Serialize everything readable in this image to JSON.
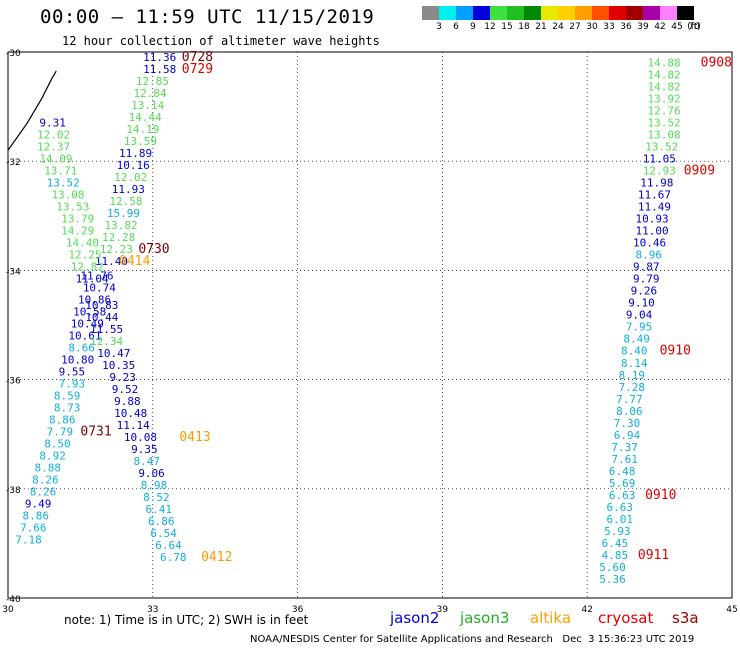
{
  "header": {
    "title": "00:00 – 11:59 UTC 11/15/2019",
    "subtitle": "12 hour collection of altimeter wave heights"
  },
  "color_scale": {
    "labels": [
      "3",
      "6",
      "9",
      "12",
      "15",
      "18",
      "21",
      "24",
      "27",
      "30",
      "33",
      "36",
      "39",
      "42",
      "45",
      "70",
      "(ft)"
    ],
    "colors": [
      "#8a8a8a",
      "#00f0f0",
      "#00a0ff",
      "#0000dd",
      "#40e040",
      "#20c020",
      "#008800",
      "#e8e800",
      "#ffd000",
      "#ffa000",
      "#ff5000",
      "#e00000",
      "#a00000",
      "#aa00aa",
      "#ff80ff",
      "#000000"
    ]
  },
  "note": "note: 1) Time is in UTC; 2) SWH is in feet",
  "satellites": [
    {
      "name": "jason2",
      "color": "#0000dd"
    },
    {
      "name": "jason3",
      "color": "#20b020"
    },
    {
      "name": "altika",
      "color": "#ffa000"
    },
    {
      "name": "cryosat",
      "color": "#e00000"
    },
    {
      "name": "s3a",
      "color": "#a00000"
    }
  ],
  "credit": "NOAA/NESDIS Center for Satellite Applications and Research   Dec  3 15:36:23 UTC 2019",
  "chart_data": {
    "type": "scatter",
    "xlim": [
      30,
      45
    ],
    "ylim": [
      -40,
      -30
    ],
    "x_ticks": [
      "30",
      "33",
      "36",
      "39",
      "42",
      "45"
    ],
    "y_ticks": [
      "-30",
      "-32",
      "-34",
      "-36",
      "-38",
      "-40"
    ],
    "color_key": {
      "b": "#0000cc",
      "g": "#55dd55",
      "c": "#10b0e0",
      "r": "#e00000",
      "m": "#800000",
      "o": "#ff9900"
    },
    "coast": [
      [
        30,
        -31.8
      ],
      [
        30.4,
        -31.3
      ],
      [
        30.7,
        -30.85
      ],
      [
        30.9,
        -30.5
      ],
      [
        31.0,
        -30.35
      ]
    ],
    "labels": [
      {
        "t": "11.36",
        "x": 32.8,
        "y": -30.0,
        "c": "b"
      },
      {
        "t": "0728",
        "x": 33.6,
        "y": -30.0,
        "c": "m"
      },
      {
        "t": "11.58",
        "x": 32.8,
        "y": -30.22,
        "c": "b"
      },
      {
        "t": "0729",
        "x": 33.6,
        "y": -30.22,
        "c": "r"
      },
      {
        "t": "12.85",
        "x": 32.65,
        "y": -30.44,
        "c": "g"
      },
      {
        "t": "12.84",
        "x": 32.6,
        "y": -30.66,
        "c": "g"
      },
      {
        "t": "13.14",
        "x": 32.55,
        "y": -30.88,
        "c": "g"
      },
      {
        "t": "14.44",
        "x": 32.5,
        "y": -31.1,
        "c": "g"
      },
      {
        "t": "14.19",
        "x": 32.45,
        "y": -31.32,
        "c": "g"
      },
      {
        "t": "13.59",
        "x": 32.4,
        "y": -31.54,
        "c": "g"
      },
      {
        "t": "11.89",
        "x": 32.3,
        "y": -31.76,
        "c": "b"
      },
      {
        "t": "10.16",
        "x": 32.25,
        "y": -31.98,
        "c": "b"
      },
      {
        "t": "12.02",
        "x": 32.2,
        "y": -32.2,
        "c": "g"
      },
      {
        "t": "11.93",
        "x": 32.15,
        "y": -32.42,
        "c": "b"
      },
      {
        "t": "12.58",
        "x": 32.1,
        "y": -32.64,
        "c": "g"
      },
      {
        "t": "15.99",
        "x": 32.05,
        "y": -32.86,
        "c": "c"
      },
      {
        "t": "13.82",
        "x": 32.0,
        "y": -33.08,
        "c": "g"
      },
      {
        "t": "12.28",
        "x": 31.95,
        "y": -33.3,
        "c": "g"
      },
      {
        "t": "12.23",
        "x": 31.9,
        "y": -33.52,
        "c": "g"
      },
      {
        "t": "0730",
        "x": 32.7,
        "y": -33.52,
        "c": "m"
      },
      {
        "t": "11.40",
        "x": 31.8,
        "y": -33.74,
        "c": "b"
      },
      {
        "t": "0414",
        "x": 32.3,
        "y": -33.74,
        "c": "o"
      },
      {
        "t": "9.31",
        "x": 30.65,
        "y": -31.2,
        "c": "b"
      },
      {
        "t": "12.02",
        "x": 30.6,
        "y": -31.42,
        "c": "g"
      },
      {
        "t": "12.37",
        "x": 30.6,
        "y": -31.64,
        "c": "g"
      },
      {
        "t": "14.09",
        "x": 30.65,
        "y": -31.86,
        "c": "g"
      },
      {
        "t": "13.71",
        "x": 30.75,
        "y": -32.08,
        "c": "g"
      },
      {
        "t": "13.52",
        "x": 30.8,
        "y": -32.3,
        "c": "c"
      },
      {
        "t": "13.08",
        "x": 30.9,
        "y": -32.52,
        "c": "g"
      },
      {
        "t": "13.53",
        "x": 31.0,
        "y": -32.74,
        "c": "g"
      },
      {
        "t": "13.79",
        "x": 31.1,
        "y": -32.96,
        "c": "g"
      },
      {
        "t": "14.29",
        "x": 31.1,
        "y": -33.18,
        "c": "g"
      },
      {
        "t": "14.40",
        "x": 31.2,
        "y": -33.4,
        "c": "g"
      },
      {
        "t": "12.25",
        "x": 31.25,
        "y": -33.62,
        "c": "g"
      },
      {
        "t": "12.82",
        "x": 31.3,
        "y": -33.84,
        "c": "g"
      },
      {
        "t": "11.76",
        "x": 31.5,
        "y": -34.0,
        "c": "b"
      },
      {
        "t": "11.04",
        "x": 31.4,
        "y": -34.06,
        "c": "b"
      },
      {
        "t": "10.74",
        "x": 31.55,
        "y": -34.22,
        "c": "b"
      },
      {
        "t": "10.86",
        "x": 31.45,
        "y": -34.44,
        "c": "b"
      },
      {
        "t": "10.83",
        "x": 31.6,
        "y": -34.54,
        "c": "b"
      },
      {
        "t": "10.58",
        "x": 31.35,
        "y": -34.66,
        "c": "b"
      },
      {
        "t": "10.44",
        "x": 31.6,
        "y": -34.76,
        "c": "b"
      },
      {
        "t": "10.49",
        "x": 31.3,
        "y": -34.88,
        "c": "b"
      },
      {
        "t": "11.55",
        "x": 31.7,
        "y": -34.98,
        "c": "b"
      },
      {
        "t": "10.61",
        "x": 31.25,
        "y": -35.1,
        "c": "b"
      },
      {
        "t": "12.34",
        "x": 31.7,
        "y": -35.2,
        "c": "g"
      },
      {
        "t": "8.66",
        "x": 31.25,
        "y": -35.32,
        "c": "c"
      },
      {
        "t": "10.47",
        "x": 31.85,
        "y": -35.42,
        "c": "b"
      },
      {
        "t": "10.80",
        "x": 31.1,
        "y": -35.54,
        "c": "b"
      },
      {
        "t": "10.35",
        "x": 31.95,
        "y": -35.64,
        "c": "b"
      },
      {
        "t": "9.55",
        "x": 31.05,
        "y": -35.76,
        "c": "b"
      },
      {
        "t": "9.23",
        "x": 32.1,
        "y": -35.86,
        "c": "b"
      },
      {
        "t": "7.93",
        "x": 31.05,
        "y": -35.98,
        "c": "c"
      },
      {
        "t": "9.52",
        "x": 32.15,
        "y": -36.08,
        "c": "b"
      },
      {
        "t": "8.59",
        "x": 30.95,
        "y": -36.2,
        "c": "c"
      },
      {
        "t": "9.88",
        "x": 32.2,
        "y": -36.3,
        "c": "b"
      },
      {
        "t": "8.73",
        "x": 30.95,
        "y": -36.42,
        "c": "c"
      },
      {
        "t": "10.48",
        "x": 32.2,
        "y": -36.52,
        "c": "b"
      },
      {
        "t": "8.86",
        "x": 30.85,
        "y": -36.64,
        "c": "c"
      },
      {
        "t": "11.14",
        "x": 32.25,
        "y": -36.74,
        "c": "b"
      },
      {
        "t": "7.79",
        "x": 30.8,
        "y": -36.86,
        "c": "c"
      },
      {
        "t": "0731",
        "x": 31.5,
        "y": -36.86,
        "c": "m"
      },
      {
        "t": "10.08",
        "x": 32.4,
        "y": -36.96,
        "c": "b"
      },
      {
        "t": "0413",
        "x": 33.55,
        "y": -36.96,
        "c": "o"
      },
      {
        "t": "8.50",
        "x": 30.75,
        "y": -37.08,
        "c": "c"
      },
      {
        "t": "9.35",
        "x": 32.55,
        "y": -37.18,
        "c": "b"
      },
      {
        "t": "8.92",
        "x": 30.65,
        "y": -37.3,
        "c": "c"
      },
      {
        "t": "8.47",
        "x": 32.6,
        "y": -37.4,
        "c": "c"
      },
      {
        "t": "8.88",
        "x": 30.55,
        "y": -37.52,
        "c": "c"
      },
      {
        "t": "9.06",
        "x": 32.7,
        "y": -37.62,
        "c": "b"
      },
      {
        "t": "8.26",
        "x": 30.5,
        "y": -37.74,
        "c": "c"
      },
      {
        "t": "8.98",
        "x": 32.75,
        "y": -37.84,
        "c": "c"
      },
      {
        "t": "8.26",
        "x": 30.45,
        "y": -37.96,
        "c": "c"
      },
      {
        "t": "8.52",
        "x": 32.8,
        "y": -38.06,
        "c": "c"
      },
      {
        "t": "9.49",
        "x": 30.35,
        "y": -38.18,
        "c": "b"
      },
      {
        "t": "6.41",
        "x": 32.85,
        "y": -38.28,
        "c": "c"
      },
      {
        "t": "8.86",
        "x": 30.3,
        "y": -38.4,
        "c": "c"
      },
      {
        "t": "6.86",
        "x": 32.9,
        "y": -38.5,
        "c": "c"
      },
      {
        "t": "7.66",
        "x": 30.25,
        "y": -38.62,
        "c": "c"
      },
      {
        "t": "6.54",
        "x": 32.95,
        "y": -38.72,
        "c": "c"
      },
      {
        "t": "7.18",
        "x": 30.15,
        "y": -38.84,
        "c": "c"
      },
      {
        "t": "6.64",
        "x": 33.05,
        "y": -38.94,
        "c": "c"
      },
      {
        "t": "6.78",
        "x": 33.15,
        "y": -39.16,
        "c": "c"
      },
      {
        "t": "0412",
        "x": 34.0,
        "y": -39.16,
        "c": "o"
      },
      {
        "t": "14.88",
        "x": 43.25,
        "y": -30.1,
        "c": "g"
      },
      {
        "t": "0908",
        "x": 44.35,
        "y": -30.1,
        "c": "r"
      },
      {
        "t": "14.82",
        "x": 43.25,
        "y": -30.32,
        "c": "g"
      },
      {
        "t": "14.82",
        "x": 43.25,
        "y": -30.54,
        "c": "g"
      },
      {
        "t": "13.92",
        "x": 43.25,
        "y": -30.76,
        "c": "g"
      },
      {
        "t": "12.76",
        "x": 43.25,
        "y": -30.98,
        "c": "g"
      },
      {
        "t": "13.52",
        "x": 43.25,
        "y": -31.2,
        "c": "g"
      },
      {
        "t": "13.08",
        "x": 43.25,
        "y": -31.42,
        "c": "g"
      },
      {
        "t": "13.52",
        "x": 43.2,
        "y": -31.64,
        "c": "g"
      },
      {
        "t": "11.05",
        "x": 43.15,
        "y": -31.86,
        "c": "b"
      },
      {
        "t": "12.93",
        "x": 43.15,
        "y": -32.08,
        "c": "g"
      },
      {
        "t": "0909",
        "x": 44.0,
        "y": -32.08,
        "c": "r"
      },
      {
        "t": "11.98",
        "x": 43.1,
        "y": -32.3,
        "c": "b"
      },
      {
        "t": "11.67",
        "x": 43.05,
        "y": -32.52,
        "c": "b"
      },
      {
        "t": "11.49",
        "x": 43.05,
        "y": -32.74,
        "c": "b"
      },
      {
        "t": "10.93",
        "x": 43.0,
        "y": -32.96,
        "c": "b"
      },
      {
        "t": "11.00",
        "x": 43.0,
        "y": -33.18,
        "c": "b"
      },
      {
        "t": "10.46",
        "x": 42.95,
        "y": -33.4,
        "c": "b"
      },
      {
        "t": "8.96",
        "x": 43.0,
        "y": -33.62,
        "c": "c"
      },
      {
        "t": "9.87",
        "x": 42.95,
        "y": -33.84,
        "c": "b"
      },
      {
        "t": "9.79",
        "x": 42.95,
        "y": -34.06,
        "c": "b"
      },
      {
        "t": "9.26",
        "x": 42.9,
        "y": -34.28,
        "c": "b"
      },
      {
        "t": "9.10",
        "x": 42.85,
        "y": -34.5,
        "c": "b"
      },
      {
        "t": "9.04",
        "x": 42.8,
        "y": -34.72,
        "c": "b"
      },
      {
        "t": "7.95",
        "x": 42.8,
        "y": -34.94,
        "c": "c"
      },
      {
        "t": "8.49",
        "x": 42.75,
        "y": -35.16,
        "c": "c"
      },
      {
        "t": "8.40",
        "x": 42.7,
        "y": -35.38,
        "c": "c"
      },
      {
        "t": "0910",
        "x": 43.5,
        "y": -35.38,
        "c": "r"
      },
      {
        "t": "8.14",
        "x": 42.7,
        "y": -35.6,
        "c": "c"
      },
      {
        "t": "8.19",
        "x": 42.65,
        "y": -35.82,
        "c": "c"
      },
      {
        "t": "7.28",
        "x": 42.65,
        "y": -36.04,
        "c": "c"
      },
      {
        "t": "7.77",
        "x": 42.6,
        "y": -36.26,
        "c": "c"
      },
      {
        "t": "8.06",
        "x": 42.6,
        "y": -36.48,
        "c": "c"
      },
      {
        "t": "7.30",
        "x": 42.55,
        "y": -36.7,
        "c": "c"
      },
      {
        "t": "6.94",
        "x": 42.55,
        "y": -36.92,
        "c": "c"
      },
      {
        "t": "7.37",
        "x": 42.5,
        "y": -37.14,
        "c": "c"
      },
      {
        "t": "7.61",
        "x": 42.5,
        "y": -37.36,
        "c": "c"
      },
      {
        "t": "6.48",
        "x": 42.45,
        "y": -37.58,
        "c": "c"
      },
      {
        "t": "5.69",
        "x": 42.45,
        "y": -37.8,
        "c": "c"
      },
      {
        "t": "6.63",
        "x": 42.45,
        "y": -38.02,
        "c": "c"
      },
      {
        "t": "0910",
        "x": 43.2,
        "y": -38.02,
        "c": "r"
      },
      {
        "t": "6.63",
        "x": 42.4,
        "y": -38.24,
        "c": "c"
      },
      {
        "t": "6.01",
        "x": 42.4,
        "y": -38.46,
        "c": "c"
      },
      {
        "t": "5.93",
        "x": 42.35,
        "y": -38.68,
        "c": "c"
      },
      {
        "t": "6.45",
        "x": 42.3,
        "y": -38.9,
        "c": "c"
      },
      {
        "t": "4.85",
        "x": 42.3,
        "y": -39.12,
        "c": "c"
      },
      {
        "t": "0911",
        "x": 43.05,
        "y": -39.12,
        "c": "r"
      },
      {
        "t": "5.60",
        "x": 42.25,
        "y": -39.34,
        "c": "c"
      },
      {
        "t": "5.36",
        "x": 42.25,
        "y": -39.56,
        "c": "c"
      }
    ]
  }
}
